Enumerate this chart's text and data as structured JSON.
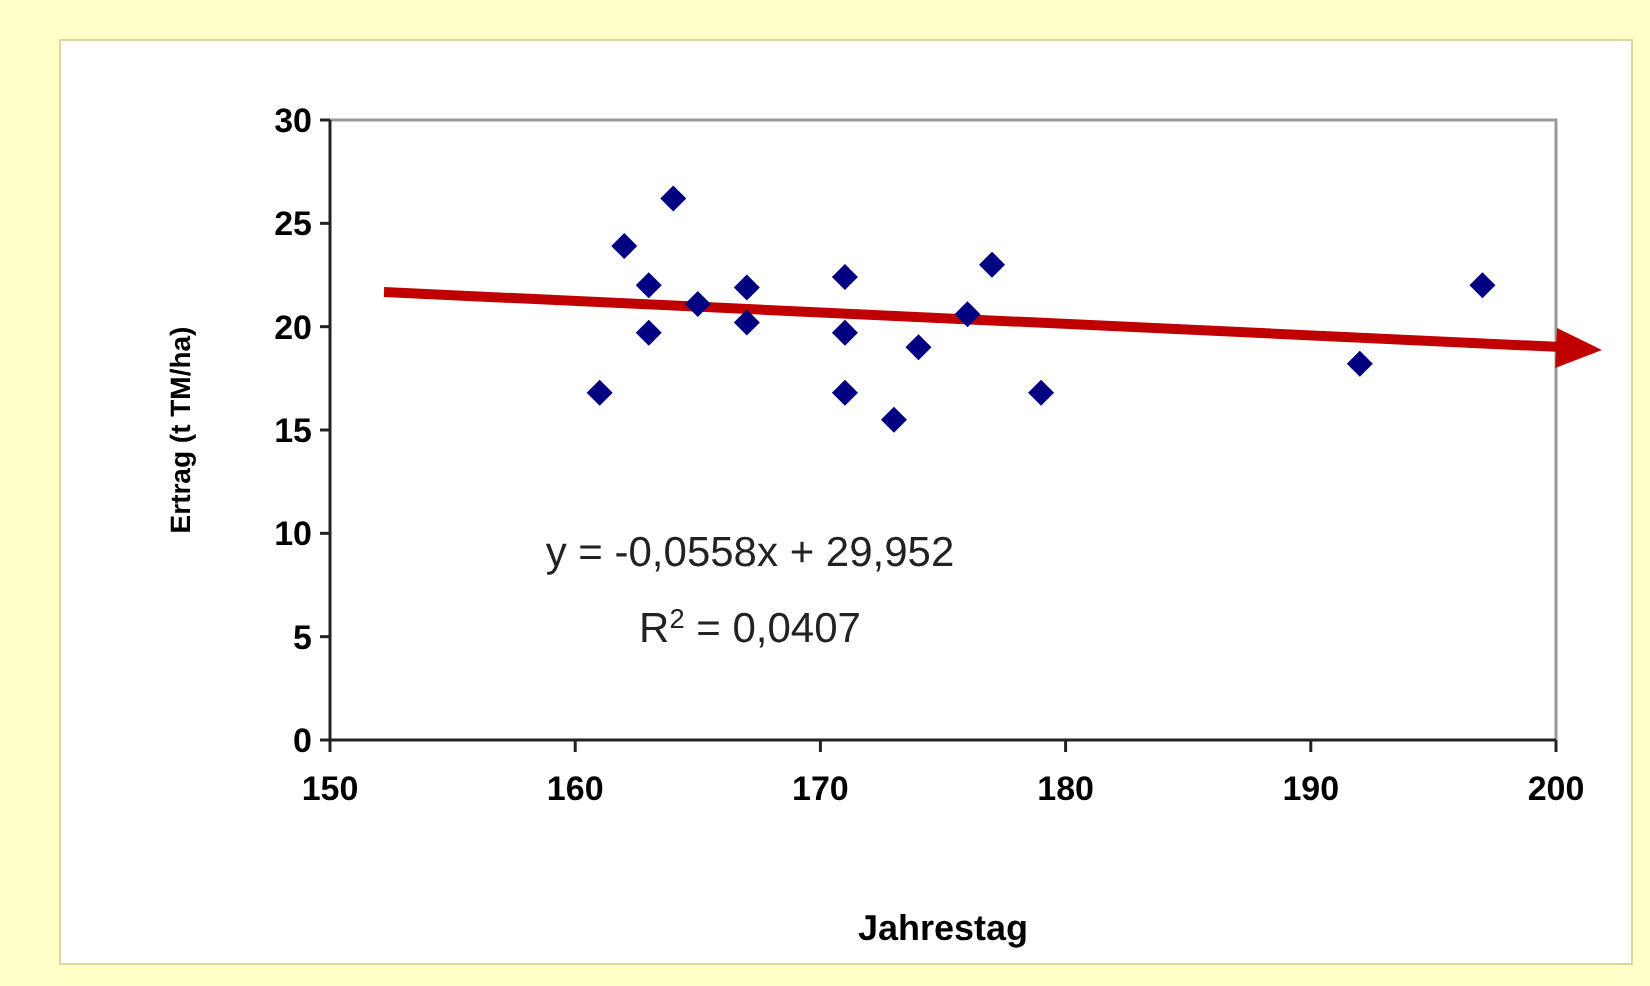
{
  "chart_data": {
    "type": "scatter",
    "xlabel": "Jahrestag",
    "ylabel": "Ertrag (t TM/ha)",
    "xlim": [
      150,
      200
    ],
    "xticks": [
      150,
      160,
      170,
      180,
      190,
      200
    ],
    "ylim": [
      0,
      30
    ],
    "yticks": [
      0,
      5,
      10,
      15,
      20,
      25,
      30
    ],
    "grid": false,
    "marker": "diamond",
    "annotations": [
      "y = -0,0558x + 29,952",
      "R$^{2}$ = 0,0407"
    ],
    "series": [
      {
        "color": "#000080",
        "x": [
          161,
          162,
          163,
          163,
          164,
          165,
          167,
          167,
          171,
          171,
          171,
          173,
          174,
          176,
          177,
          179,
          192,
          197
        ],
        "values": [
          16.8,
          23.9,
          22,
          19.7,
          26.2,
          21.1,
          21.9,
          20.2,
          22.4,
          19.7,
          16.8,
          15.5,
          19,
          20.6,
          23,
          16.8,
          18.2,
          22
        ]
      }
    ]
  }
}
